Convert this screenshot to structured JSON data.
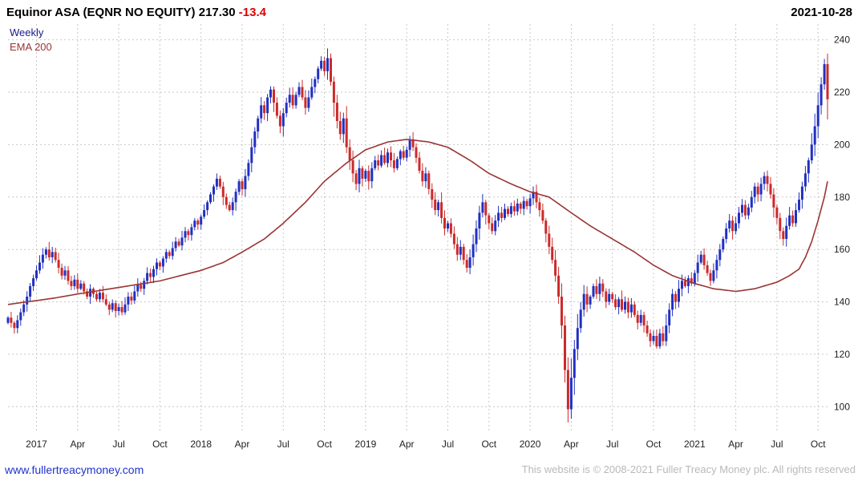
{
  "header": {
    "title": "Equinor ASA (EQNR NO EQUITY)",
    "price": "217.30",
    "change": "-13.4",
    "date": "2021-10-28"
  },
  "legend": {
    "series1": "Weekly",
    "series2": "EMA 200"
  },
  "footer": {
    "link": "www.fullertreacymoney.com",
    "copyright": "This website is © 2008-2021 Fuller Treacy Money plc. All rights reserved"
  },
  "colors": {
    "up_candle": "#2130c0",
    "down_candle": "#cc2a2a",
    "ema_line": "#9a3434",
    "grid": "#c9c9c9",
    "axis_text": "#222222",
    "title_change": "#e00000",
    "legend_weekly": "#1a1a8c",
    "legend_ema": "#9a3434",
    "link": "#2033cc",
    "copyright_text": "#b9b9b9"
  },
  "chart_data": {
    "type": "candlestick",
    "title": "Equinor ASA (EQNR NO EQUITY)",
    "timeframe": "Weekly",
    "overlay": "EMA 200",
    "last_price": 217.3,
    "change": -13.4,
    "as_of_date": "2021-10-28",
    "grid": true,
    "legend_position": "top-left",
    "y_axis_side": "right",
    "ylim": [
      90,
      246
    ],
    "yticks": [
      100,
      120,
      140,
      160,
      180,
      200,
      220,
      240
    ],
    "x_tick_labels": [
      "2017",
      "Apr",
      "Jul",
      "Oct",
      "2018",
      "Apr",
      "Jul",
      "Oct",
      "2019",
      "Apr",
      "Jul",
      "Oct",
      "2020",
      "Apr",
      "Jul",
      "Oct",
      "2021",
      "Apr",
      "Jul",
      "Oct"
    ],
    "x_tick_weeks": [
      9,
      22,
      35,
      48,
      61,
      74,
      87,
      100,
      113,
      126,
      139,
      152,
      165,
      178,
      191,
      204,
      217,
      230,
      243,
      256
    ],
    "closes": [
      134,
      132,
      130,
      133,
      136,
      139,
      142,
      146,
      149,
      152,
      155,
      158,
      160,
      157,
      159,
      156,
      153,
      150,
      152,
      148,
      146,
      148.5,
      145,
      147,
      144,
      142,
      145,
      143,
      141,
      143.5,
      141,
      139,
      137,
      139.5,
      136.5,
      138,
      136,
      139,
      142,
      140.5,
      144,
      146.5,
      145,
      148,
      151,
      149.5,
      152.5,
      155,
      153.5,
      156.5,
      159,
      157.5,
      160.5,
      163,
      161.5,
      164.5,
      167,
      165.5,
      168.5,
      171,
      169.5,
      172.5,
      175,
      178,
      181,
      184,
      187,
      184,
      180,
      177,
      175,
      178,
      182,
      186,
      183,
      188,
      193,
      199,
      205,
      210,
      215,
      212,
      218,
      221,
      216,
      211,
      207,
      212,
      216,
      219,
      215,
      219,
      222,
      218,
      214,
      218,
      222,
      225,
      229,
      232,
      228,
      233,
      224,
      216,
      209,
      204,
      210,
      199,
      194,
      189,
      185,
      191,
      187,
      190,
      186,
      191,
      194,
      192,
      196,
      193,
      197,
      194,
      191,
      194.5,
      197.5,
      195,
      198,
      202,
      199,
      195,
      190,
      186,
      189,
      183,
      179,
      175,
      178,
      172,
      168,
      170,
      166,
      162,
      158,
      161,
      156,
      153,
      157,
      162,
      168,
      174,
      178,
      173,
      170,
      167,
      171,
      174,
      172,
      175.5,
      173.5,
      176.5,
      174.5,
      177.5,
      175.5,
      178.5,
      176.5,
      179.5,
      182,
      178,
      175,
      171,
      166,
      161,
      156,
      150,
      142,
      131,
      114,
      99,
      111,
      122,
      130,
      137,
      143,
      139,
      142,
      146,
      143,
      147,
      144,
      140,
      143,
      141,
      138,
      141,
      137,
      140,
      136,
      139,
      135,
      132,
      135,
      131,
      128,
      125,
      127,
      123,
      128,
      125,
      131,
      137,
      143,
      140,
      145,
      148,
      146,
      149,
      147,
      151,
      155,
      158,
      154,
      151,
      148,
      152,
      156,
      160,
      164,
      168,
      171,
      167,
      170,
      174,
      177,
      173,
      176,
      180,
      184,
      181,
      185,
      188,
      185,
      181,
      176,
      172,
      167,
      164,
      169,
      173,
      170,
      175,
      179,
      184,
      189,
      194,
      200,
      207,
      215,
      223,
      230.7,
      217.3
    ],
    "ema_anchors": [
      [
        0,
        139
      ],
      [
        15,
        141.5
      ],
      [
        22,
        143
      ],
      [
        35,
        145.5
      ],
      [
        48,
        148
      ],
      [
        61,
        152
      ],
      [
        68,
        155
      ],
      [
        74,
        159
      ],
      [
        81,
        164
      ],
      [
        87,
        170
      ],
      [
        94,
        178
      ],
      [
        100,
        186
      ],
      [
        107,
        193
      ],
      [
        113,
        198
      ],
      [
        120,
        201
      ],
      [
        126,
        202
      ],
      [
        133,
        201
      ],
      [
        139,
        199
      ],
      [
        146,
        194
      ],
      [
        152,
        189
      ],
      [
        159,
        185
      ],
      [
        165,
        182
      ],
      [
        171,
        180
      ],
      [
        178,
        174
      ],
      [
        184,
        169
      ],
      [
        191,
        164
      ],
      [
        198,
        159
      ],
      [
        204,
        154
      ],
      [
        210,
        150
      ],
      [
        217,
        147
      ],
      [
        223,
        145
      ],
      [
        230,
        144
      ],
      [
        236,
        145
      ],
      [
        243,
        147.5
      ],
      [
        247,
        150
      ],
      [
        250,
        152.5
      ],
      [
        252,
        157
      ],
      [
        254,
        163
      ],
      [
        256,
        171
      ],
      [
        258,
        180
      ],
      [
        259,
        186
      ]
    ]
  }
}
